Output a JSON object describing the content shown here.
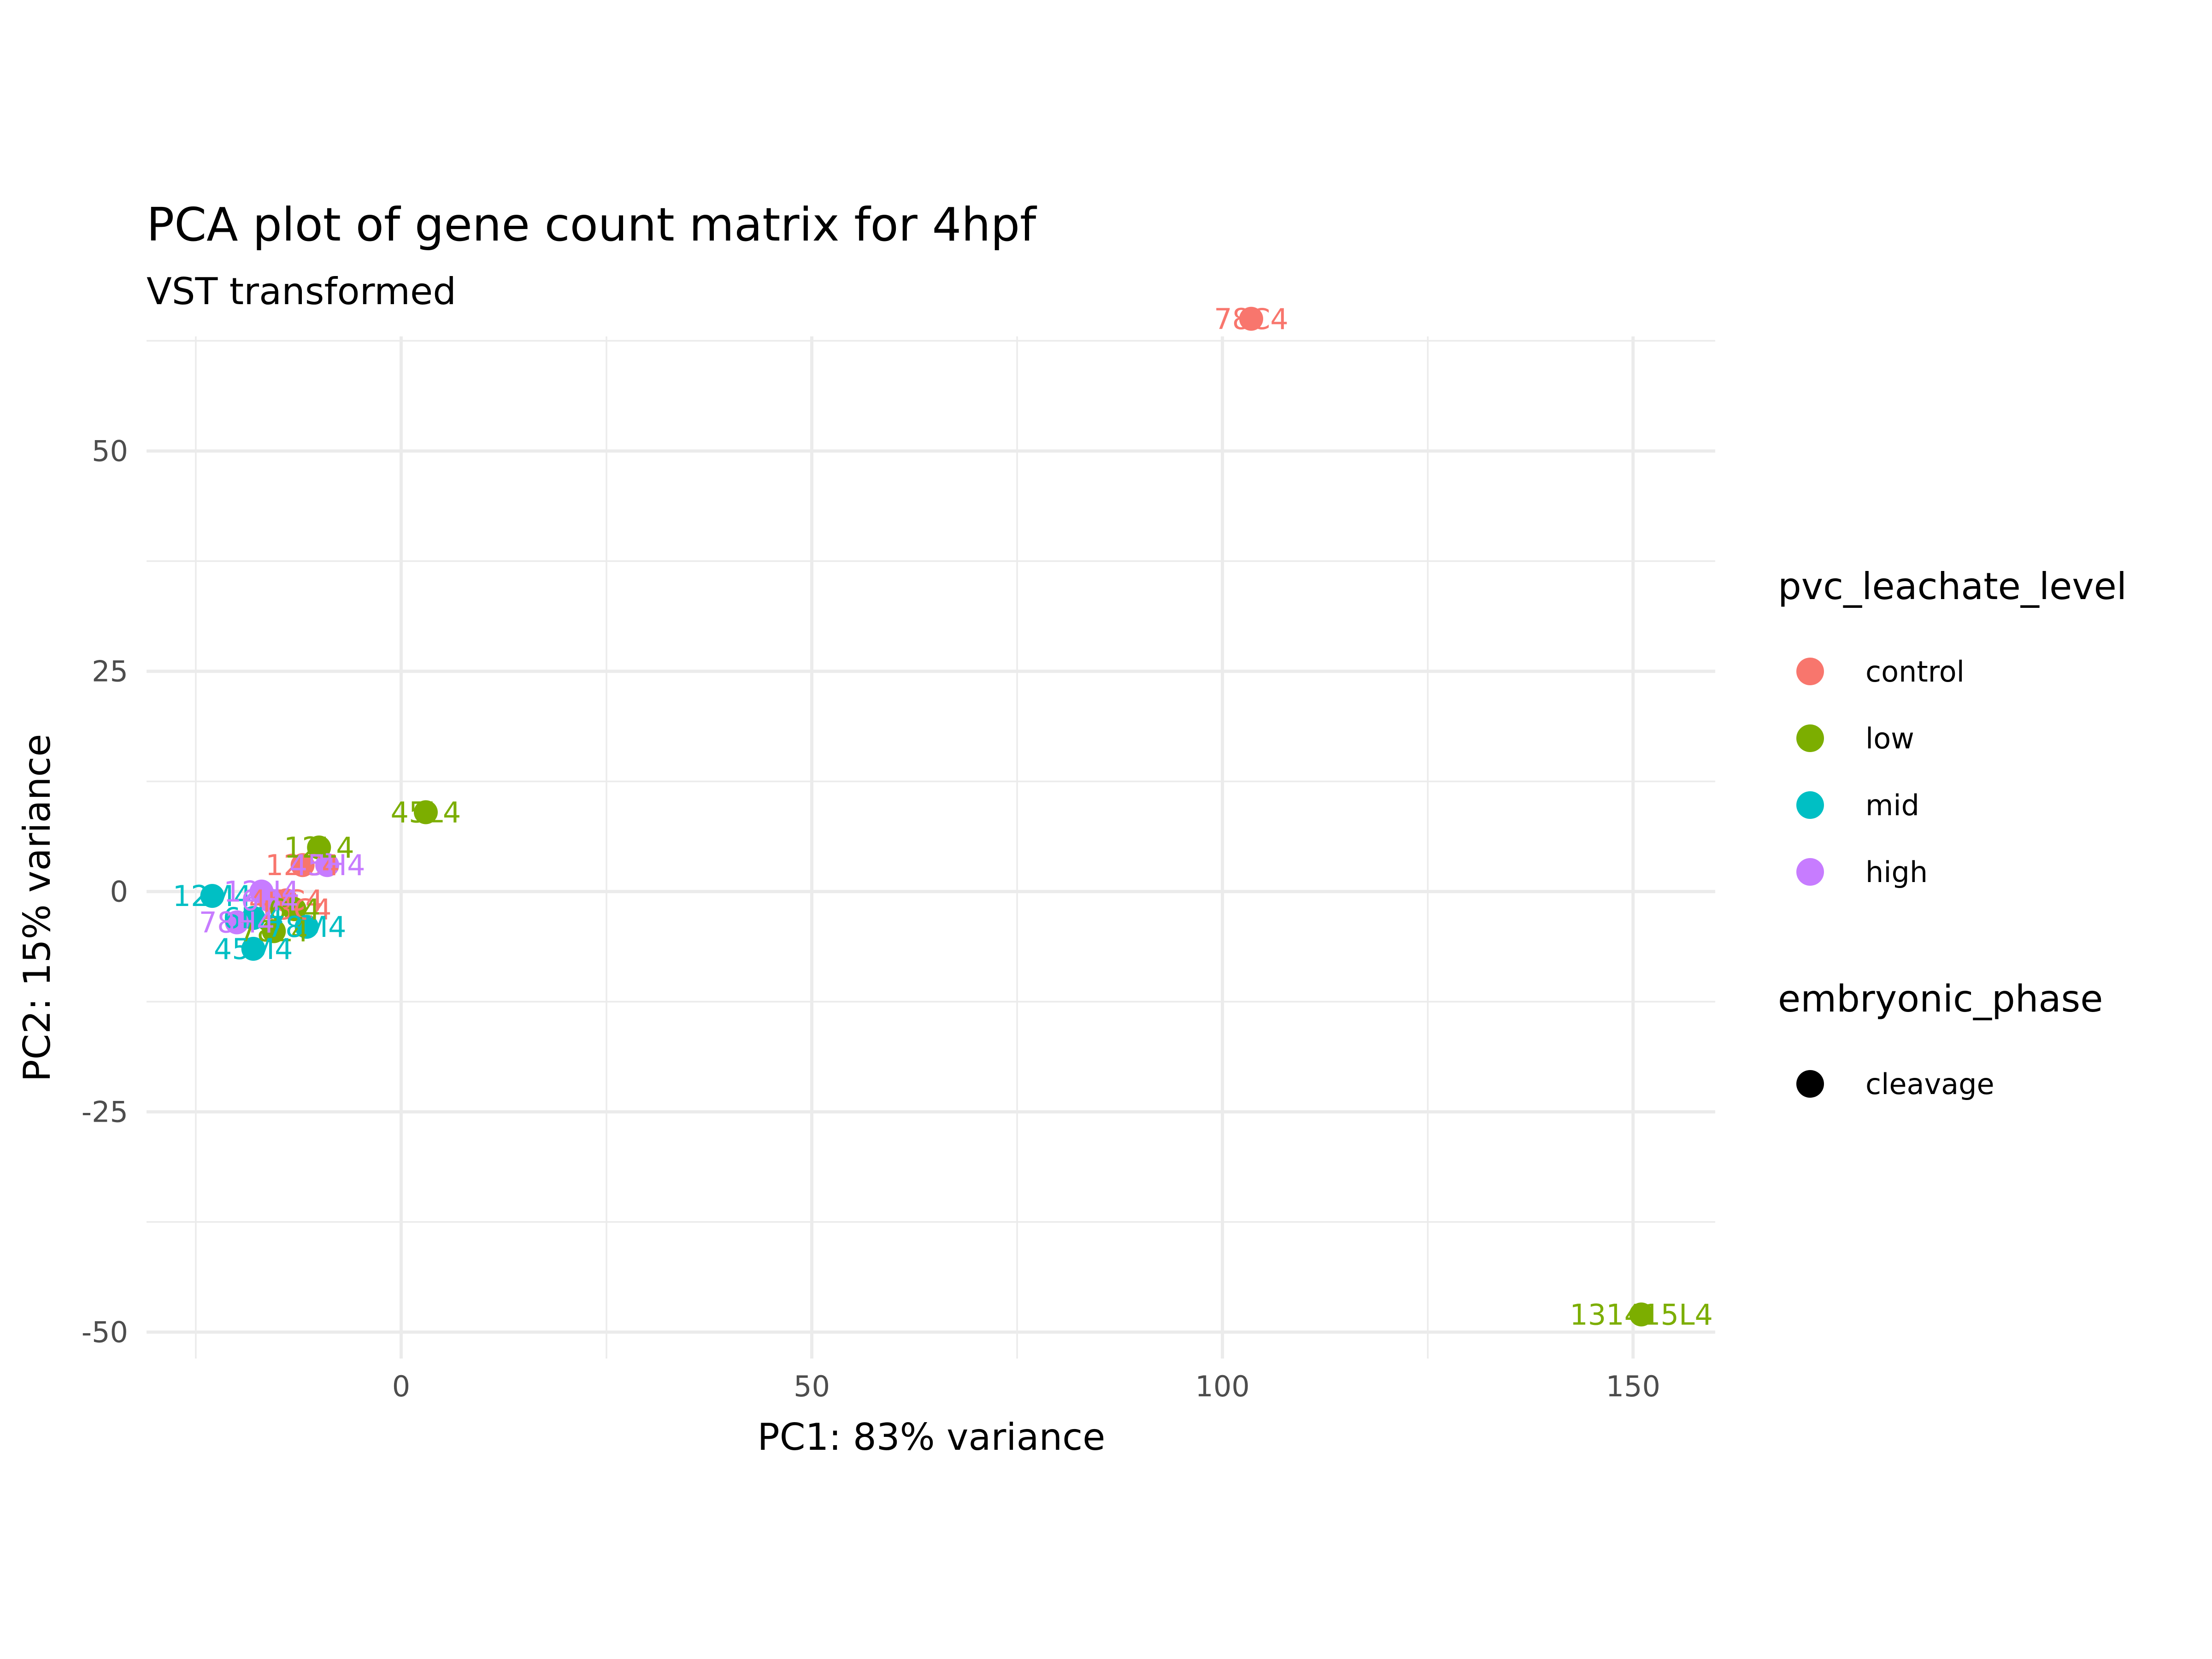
{
  "chart_data": {
    "type": "scatter",
    "title": "PCA plot of gene count matrix for 4hpf",
    "subtitle": "VST transformed",
    "xlabel": "PC1: 83% variance",
    "ylabel": "PC2: 15% variance",
    "xlim": [
      -31,
      160
    ],
    "ylim": [
      -53,
      63
    ],
    "x_ticks": [
      0,
      50,
      100,
      150
    ],
    "y_ticks": [
      -50,
      -25,
      0,
      25,
      50
    ],
    "x_tick_labels": [
      "0",
      "50",
      "100",
      "150"
    ],
    "y_tick_labels": [
      "-50",
      "-25",
      "0",
      "25",
      "50"
    ],
    "grid": true,
    "legend_placement": "right",
    "legends": [
      {
        "title": "pvc_leachate_level",
        "entries": [
          {
            "label": "control",
            "color": "#F8766D"
          },
          {
            "label": "low",
            "color": "#7CAE00"
          },
          {
            "label": "mid",
            "color": "#00BFC4"
          },
          {
            "label": "high",
            "color": "#C77CFF"
          }
        ]
      },
      {
        "title": "embryonic_phase",
        "entries": [
          {
            "label": "cleavage",
            "color": "#000000"
          }
        ]
      }
    ],
    "series": [
      {
        "group": "control",
        "color": "#F8766D",
        "points": [
          {
            "x": 103.5,
            "y": 65,
            "label": "78C4"
          },
          {
            "x": -12,
            "y": 3,
            "label": "12C4"
          },
          {
            "x": -14,
            "y": -1,
            "label": "45C4"
          },
          {
            "x": -13,
            "y": -2,
            "label": "13C4"
          }
        ]
      },
      {
        "group": "low",
        "color": "#7CAE00",
        "points": [
          {
            "x": 151,
            "y": -48,
            "label": "131415L4"
          },
          {
            "x": 3,
            "y": 9,
            "label": "45L4"
          },
          {
            "x": -10,
            "y": 5,
            "label": "12L4"
          },
          {
            "x": -15.5,
            "y": -4.5,
            "label": "78L4"
          },
          {
            "x": -13,
            "y": -2,
            "label": "6L4"
          }
        ]
      },
      {
        "group": "mid",
        "color": "#00BFC4",
        "points": [
          {
            "x": -23,
            "y": -0.5,
            "label": "12M4"
          },
          {
            "x": -18,
            "y": -6.5,
            "label": "45M4"
          },
          {
            "x": -18,
            "y": -3,
            "label": "6M4"
          },
          {
            "x": -11.5,
            "y": -4,
            "label": "78M4"
          }
        ]
      },
      {
        "group": "high",
        "color": "#C77CFF",
        "points": [
          {
            "x": -9,
            "y": 3,
            "label": "45H4"
          },
          {
            "x": -17,
            "y": 0,
            "label": "12H4"
          },
          {
            "x": -16,
            "y": -1,
            "label": "6H4"
          },
          {
            "x": -20,
            "y": -3.5,
            "label": "78H4"
          }
        ]
      }
    ]
  }
}
